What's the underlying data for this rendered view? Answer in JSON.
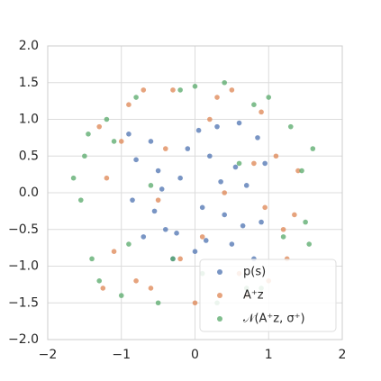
{
  "chart_data": {
    "type": "scatter",
    "xlim": [
      -2,
      2
    ],
    "ylim": [
      -2,
      2
    ],
    "xticks": [
      {
        "value": -2,
        "label": "−2"
      },
      {
        "value": -1,
        "label": "−1"
      },
      0,
      1,
      2
    ],
    "yticks": [
      {
        "value": -2,
        "label": "−2.0"
      },
      {
        "value": -1.5,
        "label": "−1.5"
      },
      {
        "value": -1,
        "label": "−1.0"
      },
      {
        "value": -0.5,
        "label": "−0.5"
      },
      {
        "value": 0,
        "label": "0.0"
      },
      {
        "value": 0.5,
        "label": "0.5"
      },
      {
        "value": 1,
        "label": "1.0"
      },
      {
        "value": 1.5,
        "label": "1.5"
      },
      {
        "value": 2,
        "label": "2.0"
      }
    ],
    "grid": true,
    "legend": "lower right",
    "series": [
      {
        "name": "p(s)",
        "color": "#4c72b0",
        "x": [
          -0.9,
          -0.7,
          -0.5,
          -0.3,
          -0.1,
          0.1,
          0.3,
          0.5,
          0.7,
          0.9,
          -0.85,
          -0.6,
          -0.4,
          -0.2,
          0.0,
          0.2,
          0.4,
          0.6,
          0.8,
          0.95,
          -0.8,
          -0.55,
          -0.25,
          0.05,
          0.35,
          0.65,
          0.85,
          -0.45,
          0.15,
          0.55
        ],
        "y": [
          0.8,
          -0.6,
          0.3,
          -0.9,
          0.6,
          -0.2,
          0.9,
          -0.7,
          0.1,
          -0.4,
          -0.1,
          0.7,
          -0.5,
          0.2,
          -0.8,
          0.5,
          -0.3,
          0.95,
          -0.9,
          0.4,
          0.45,
          -0.25,
          -0.55,
          0.85,
          0.15,
          -0.45,
          0.75,
          0.05,
          -0.65,
          0.35
        ]
      },
      {
        "name": "A⁺z",
        "color": "#dd8452",
        "x": [
          -1.3,
          -1.1,
          -0.9,
          -0.6,
          -0.3,
          0.0,
          0.3,
          0.6,
          0.9,
          1.2,
          1.4,
          -1.2,
          -0.8,
          -0.4,
          0.2,
          0.7,
          1.1,
          1.35,
          -1.25,
          -0.7,
          0.1,
          0.5,
          1.0,
          -1.0,
          -0.2,
          0.4,
          0.8,
          1.25,
          -0.5,
          0.95
        ],
        "y": [
          0.9,
          -0.8,
          1.2,
          -1.3,
          1.4,
          -1.5,
          1.3,
          -1.1,
          1.1,
          -0.5,
          0.3,
          0.2,
          -1.2,
          0.6,
          1.0,
          -1.4,
          0.5,
          -0.3,
          -1.3,
          1.4,
          -0.6,
          1.4,
          -1.2,
          0.7,
          -0.9,
          0.0,
          0.4,
          -0.9,
          -0.1,
          -0.2
        ]
      },
      {
        "name": "𝒩(A⁺z, σ⁺)",
        "color": "#55a868",
        "x": [
          -1.65,
          -1.5,
          -1.4,
          -1.2,
          -1.0,
          -0.8,
          -0.5,
          -0.2,
          0.1,
          0.4,
          0.7,
          1.0,
          1.3,
          1.5,
          1.6,
          -1.55,
          -1.3,
          -1.1,
          -0.9,
          -0.6,
          0.0,
          0.3,
          0.6,
          0.9,
          1.2,
          1.45,
          -1.45,
          -0.3,
          0.8,
          1.55
        ],
        "y": [
          0.2,
          0.5,
          -0.9,
          1.0,
          -1.4,
          1.3,
          -1.5,
          1.4,
          -1.1,
          1.5,
          -1.3,
          1.3,
          0.9,
          -0.4,
          0.6,
          -0.1,
          -1.2,
          0.7,
          -0.7,
          0.1,
          1.45,
          -1.5,
          0.4,
          -1.3,
          -0.6,
          0.3,
          0.8,
          -0.9,
          1.2,
          -0.7
        ]
      }
    ]
  }
}
